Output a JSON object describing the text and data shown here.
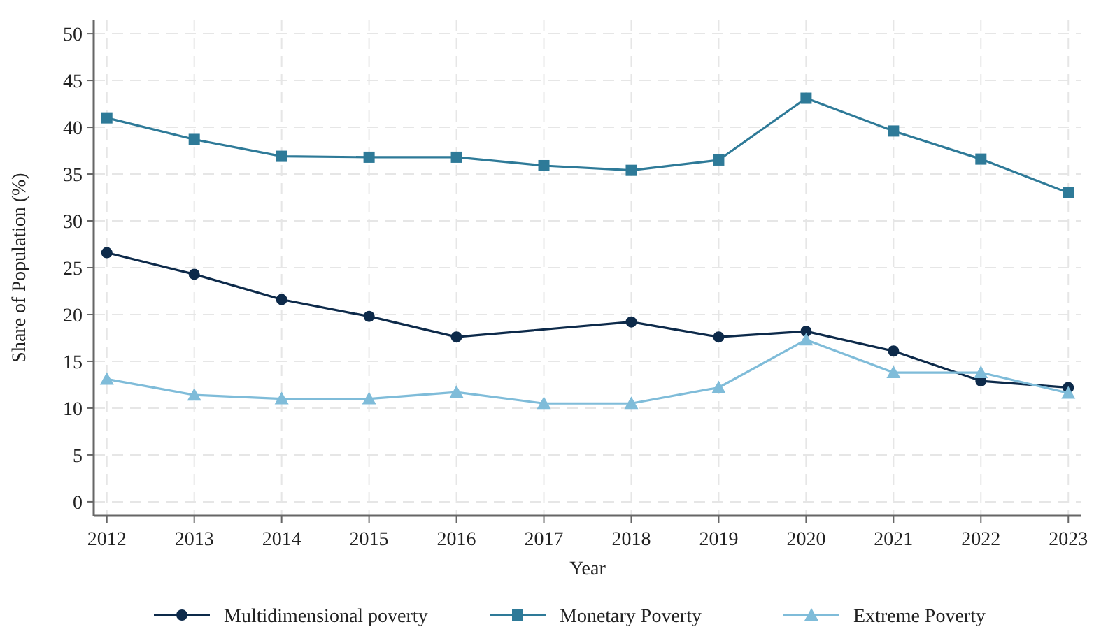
{
  "chart_data": {
    "type": "line",
    "xlabel": "Year",
    "ylabel": "Share of Population (%)",
    "x": [
      2012,
      2013,
      2014,
      2015,
      2016,
      2017,
      2018,
      2019,
      2020,
      2021,
      2022,
      2023
    ],
    "xlim": [
      2011.85,
      2023.15
    ],
    "xticks": [
      2012,
      2013,
      2014,
      2015,
      2016,
      2017,
      2018,
      2019,
      2020,
      2021,
      2022,
      2023
    ],
    "ylim": [
      -1.5,
      51.5
    ],
    "yticks": [
      0,
      5,
      10,
      15,
      20,
      25,
      30,
      35,
      40,
      45,
      50
    ],
    "grid": true,
    "legend": "bottom",
    "line_style": "solid",
    "series": [
      {
        "name": "Multidimensional poverty",
        "color": "#0d2a4a",
        "marker": "circle",
        "values": [
          26.6,
          24.3,
          21.6,
          19.8,
          17.6,
          null,
          19.2,
          17.6,
          18.2,
          16.1,
          12.9,
          12.2
        ]
      },
      {
        "name": "Monetary Poverty",
        "color": "#2e7a98",
        "marker": "square",
        "values": [
          41.0,
          38.7,
          36.9,
          36.8,
          36.8,
          35.9,
          35.4,
          36.5,
          43.1,
          39.6,
          36.6,
          33.0
        ]
      },
      {
        "name": "Extreme Poverty",
        "color": "#7fbcd9",
        "marker": "triangle",
        "values": [
          13.1,
          11.4,
          11.0,
          11.0,
          11.7,
          10.5,
          10.5,
          12.2,
          17.3,
          13.8,
          13.8,
          11.6
        ]
      }
    ]
  }
}
